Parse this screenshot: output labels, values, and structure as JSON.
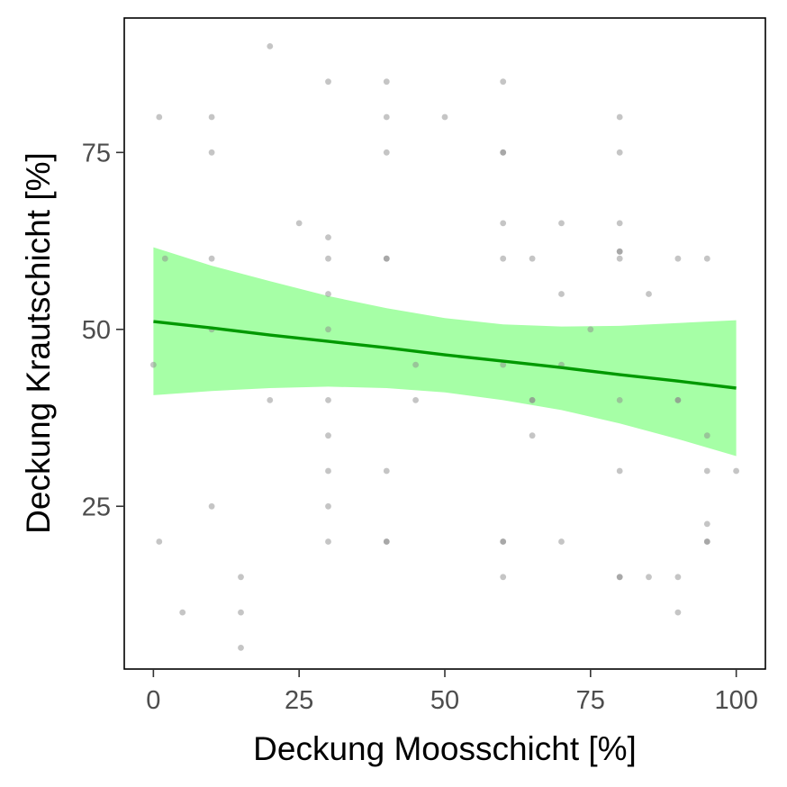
{
  "chart_data": {
    "type": "scatter",
    "title": "",
    "xlabel": "Deckung Moosschicht [%]",
    "ylabel": "Deckung Krautschicht [%]",
    "xlim": [
      -5,
      105
    ],
    "ylim": [
      2,
      94
    ],
    "x_ticks": [
      0,
      25,
      50,
      75,
      100
    ],
    "y_ticks": [
      25,
      50,
      75
    ],
    "grid": false,
    "colors": {
      "points": "#8c8c8c",
      "trend_line": "#009900",
      "ribbon": "#a6ffa6",
      "panel_border": "#000000"
    },
    "points": [
      [
        0,
        45
      ],
      [
        1,
        80
      ],
      [
        1,
        20
      ],
      [
        2,
        60
      ],
      [
        5,
        10
      ],
      [
        10,
        80
      ],
      [
        10,
        75
      ],
      [
        10,
        60
      ],
      [
        10,
        50
      ],
      [
        10,
        25
      ],
      [
        15,
        15
      ],
      [
        15,
        10
      ],
      [
        15,
        5
      ],
      [
        20,
        90
      ],
      [
        20,
        40
      ],
      [
        25,
        65
      ],
      [
        30,
        85
      ],
      [
        30,
        63
      ],
      [
        30,
        60
      ],
      [
        30,
        55
      ],
      [
        30,
        50
      ],
      [
        30,
        40
      ],
      [
        30,
        35
      ],
      [
        30,
        30
      ],
      [
        30,
        25
      ],
      [
        30,
        20
      ],
      [
        40,
        85
      ],
      [
        40,
        80
      ],
      [
        40,
        75
      ],
      [
        40,
        60
      ],
      [
        40,
        60
      ],
      [
        40,
        30
      ],
      [
        40,
        20
      ],
      [
        40,
        20
      ],
      [
        45,
        45
      ],
      [
        45,
        40
      ],
      [
        50,
        80
      ],
      [
        60,
        85
      ],
      [
        60,
        75
      ],
      [
        60,
        75
      ],
      [
        60,
        65
      ],
      [
        60,
        60
      ],
      [
        60,
        45
      ],
      [
        60,
        20
      ],
      [
        60,
        20
      ],
      [
        60,
        15
      ],
      [
        65,
        60
      ],
      [
        65,
        40
      ],
      [
        65,
        40
      ],
      [
        65,
        35
      ],
      [
        70,
        65
      ],
      [
        70,
        55
      ],
      [
        70,
        45
      ],
      [
        70,
        20
      ],
      [
        75,
        50
      ],
      [
        80,
        80
      ],
      [
        80,
        75
      ],
      [
        80,
        65
      ],
      [
        80,
        61
      ],
      [
        80,
        61
      ],
      [
        80,
        60
      ],
      [
        80,
        40
      ],
      [
        80,
        30
      ],
      [
        80,
        15
      ],
      [
        80,
        15
      ],
      [
        85,
        55
      ],
      [
        85,
        15
      ],
      [
        90,
        60
      ],
      [
        90,
        40
      ],
      [
        90,
        40
      ],
      [
        90,
        15
      ],
      [
        90,
        10
      ],
      [
        95,
        60
      ],
      [
        95,
        35
      ],
      [
        95,
        30
      ],
      [
        95,
        22.5
      ],
      [
        95,
        20
      ],
      [
        95,
        20
      ],
      [
        100,
        30
      ]
    ],
    "trend": {
      "x": [
        0,
        10,
        20,
        30,
        40,
        50,
        60,
        70,
        80,
        90,
        100
      ],
      "fit": [
        51.1,
        50.2,
        49.2,
        48.3,
        47.4,
        46.4,
        45.5,
        44.6,
        43.6,
        42.7,
        41.7
      ],
      "lower": [
        40.7,
        41.3,
        41.7,
        41.9,
        41.7,
        41.1,
        40.0,
        38.6,
        36.7,
        34.5,
        32.1
      ],
      "upper": [
        61.6,
        59.0,
        56.8,
        54.7,
        53.0,
        51.6,
        50.7,
        50.4,
        50.5,
        50.9,
        51.3
      ]
    }
  }
}
